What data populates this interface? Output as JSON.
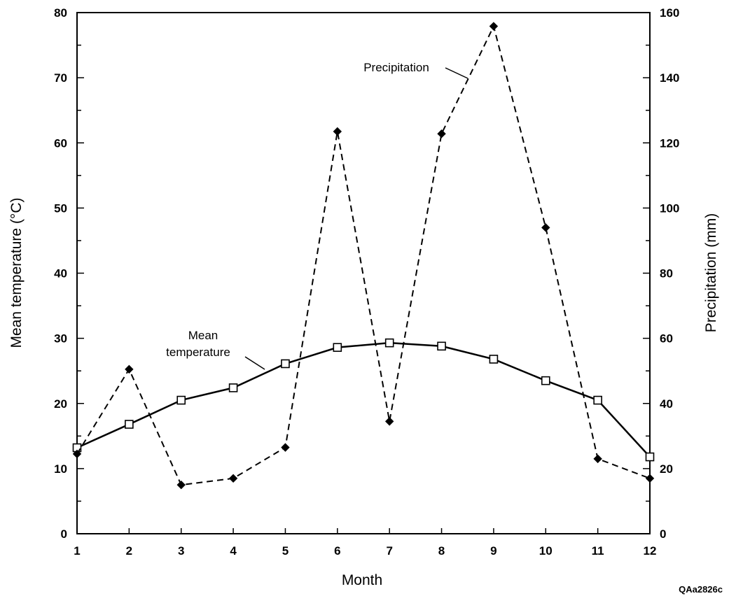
{
  "chart_data": {
    "type": "line",
    "xlabel": "Month",
    "ylabel": "Mean temperature (°C)",
    "y2label": "Precipitation (mm)",
    "x": [
      1,
      2,
      3,
      4,
      5,
      6,
      7,
      8,
      9,
      10,
      11,
      12
    ],
    "xlim": [
      1,
      12
    ],
    "ylim": [
      0,
      80
    ],
    "y2lim": [
      0,
      160
    ],
    "x_ticks": [
      1,
      2,
      3,
      4,
      5,
      6,
      7,
      8,
      9,
      10,
      11,
      12
    ],
    "y_ticks": [
      0,
      10,
      20,
      30,
      40,
      50,
      60,
      70,
      80
    ],
    "y2_ticks": [
      0,
      20,
      40,
      60,
      80,
      100,
      120,
      140,
      160
    ],
    "grid": false,
    "series": [
      {
        "name": "Mean temperature",
        "axis": "left",
        "line_style": "solid",
        "marker": "open-square",
        "values": [
          13.2,
          16.8,
          20.5,
          22.4,
          26.1,
          28.6,
          29.3,
          28.8,
          26.8,
          23.5,
          20.5,
          11.8
        ]
      },
      {
        "name": "Precipitation",
        "axis": "right",
        "line_style": "dashed",
        "marker": "filled-diamond",
        "values": [
          24.5,
          50.5,
          15,
          17,
          26.5,
          123.5,
          34.5,
          122.8,
          155.8,
          94,
          23,
          17
        ]
      }
    ],
    "annotations": [
      {
        "text_lines": [
          "Mean",
          "temperature"
        ],
        "target_series": "Mean temperature"
      },
      {
        "text_lines": [
          "Precipitation"
        ],
        "target_series": "Precipitation"
      }
    ],
    "figure_id": "QAa2826c"
  }
}
